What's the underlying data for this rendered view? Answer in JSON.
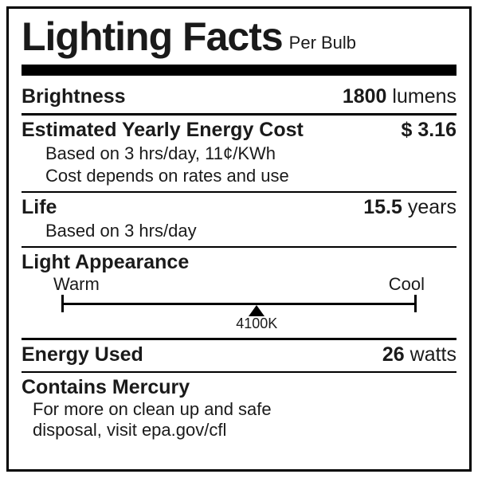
{
  "header": {
    "title": "Lighting Facts",
    "per": "Per Bulb"
  },
  "brightness": {
    "label": "Brightness",
    "value": "1800",
    "unit": "lumens"
  },
  "cost": {
    "label": "Estimated Yearly Energy Cost",
    "value": "$ 3.16",
    "basis1": "Based on 3 hrs/day, 11¢/KWh",
    "basis2": "Cost depends on rates and use"
  },
  "life": {
    "label": "Life",
    "value": "15.5",
    "unit": "years",
    "basis": "Based on 3 hrs/day"
  },
  "appearance": {
    "label": "Light Appearance",
    "warm": "Warm",
    "cool": "Cool",
    "kelvin": "4100K",
    "marker_percent": 55
  },
  "energy": {
    "label": "Energy Used",
    "value": "26",
    "unit": "watts"
  },
  "mercury": {
    "label": "Contains Mercury",
    "line1": "For more on clean up and safe",
    "line2": "disposal, visit epa.gov/cfl"
  },
  "style": {
    "border_color": "#000000",
    "text_color": "#1a1a1a",
    "background": "#ffffff"
  }
}
